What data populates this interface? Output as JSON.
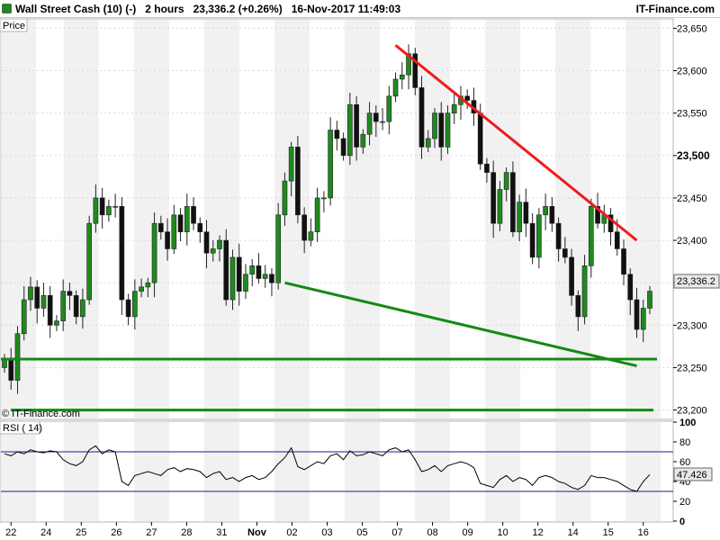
{
  "header": {
    "title": "Wall Street Cash (10) (-)",
    "interval": "2 hours",
    "last_price": "23,336.2 (+0.26%)",
    "datetime": "16-Nov-2017 11:49:03",
    "brand": "IT-Finance.com"
  },
  "watermark": "© IT-Finance.com",
  "colors": {
    "candle_up": "#1f8a1f",
    "candle_down": "#111111",
    "resistance": "#ee1c1c",
    "support": "#138a13",
    "rsi_line": "#000000",
    "rsi_band": "#1c1c8a",
    "price_tag_bg": "#e8e8e8"
  },
  "chart_data": [
    {
      "type": "candlestick",
      "panel_label": "Price",
      "y_ticks": [
        "23,650",
        "23,600",
        "23,550",
        "23,500",
        "23,450",
        "23,400",
        "23,350",
        "23,300",
        "23,250",
        "23,200"
      ],
      "ylim": [
        23190,
        23660
      ],
      "x_ticks": [
        "22",
        "24",
        "25",
        "26",
        "27",
        "28",
        "31",
        "Nov",
        "02",
        "03",
        "05",
        "07",
        "08",
        "09",
        "10",
        "12",
        "14",
        "15",
        "16"
      ],
      "last_value_label": "23,336.2",
      "series": [
        {
          "name": "price",
          "close": [
            23260,
            23235,
            23290,
            23330,
            23345,
            23320,
            23335,
            23300,
            23305,
            23340,
            23335,
            23310,
            23330,
            23420,
            23450,
            23430,
            23440,
            23440,
            23330,
            23310,
            23340,
            23345,
            23350,
            23420,
            23410,
            23390,
            23430,
            23410,
            23440,
            23420,
            23410,
            23385,
            23390,
            23400,
            23330,
            23380,
            23340,
            23360,
            23370,
            23355,
            23360,
            23350,
            23430,
            23470,
            23510,
            23430,
            23400,
            23410,
            23450,
            23450,
            23530,
            23520,
            23500,
            23560,
            23510,
            23525,
            23550,
            23540,
            23540,
            23570,
            23590,
            23595,
            23620,
            23580,
            23510,
            23520,
            23550,
            23510,
            23550,
            23560,
            23570,
            23565,
            23550,
            23490,
            23480,
            23420,
            23460,
            23480,
            23410,
            23445,
            23420,
            23380,
            23430,
            23440,
            23420,
            23390,
            23380,
            23335,
            23310,
            23370,
            23440,
            23420,
            23430,
            23410,
            23390,
            23360,
            23330,
            23295,
            23320,
            23340
          ]
        },
        {
          "name": "resistance_line",
          "points": [
            {
              "i": 60,
              "y": 23630
            },
            {
              "i": 97,
              "y": 23400
            }
          ]
        },
        {
          "name": "support_trendline",
          "points": [
            {
              "i": 43,
              "y": 23350
            },
            {
              "i": 97,
              "y": 23252
            }
          ]
        },
        {
          "name": "horizontal_support",
          "y": 23260
        },
        {
          "name": "horizontal_support_2",
          "y": 23200
        }
      ]
    },
    {
      "type": "line",
      "panel_label": "RSI ( 14)",
      "y_ticks": [
        "100",
        "80",
        "60",
        "40",
        "20",
        "0"
      ],
      "ylim": [
        0,
        100
      ],
      "bands": [
        70,
        30
      ],
      "last_value_label": "47.426",
      "series": [
        {
          "name": "RSI",
          "values": [
            68,
            66,
            70,
            68,
            72,
            70,
            69,
            71,
            70,
            62,
            58,
            56,
            60,
            72,
            76,
            68,
            72,
            70,
            40,
            36,
            46,
            48,
            50,
            48,
            46,
            52,
            54,
            50,
            53,
            52,
            50,
            44,
            48,
            50,
            42,
            44,
            40,
            44,
            46,
            42,
            44,
            50,
            58,
            64,
            74,
            55,
            52,
            56,
            60,
            58,
            66,
            68,
            62,
            71,
            66,
            67,
            70,
            68,
            66,
            72,
            74,
            70,
            72,
            62,
            50,
            52,
            56,
            50,
            56,
            58,
            60,
            58,
            54,
            38,
            36,
            34,
            42,
            46,
            40,
            44,
            42,
            36,
            44,
            46,
            44,
            40,
            38,
            34,
            32,
            36,
            46,
            44,
            44,
            42,
            40,
            36,
            32,
            30,
            40,
            47
          ]
        }
      ]
    }
  ]
}
